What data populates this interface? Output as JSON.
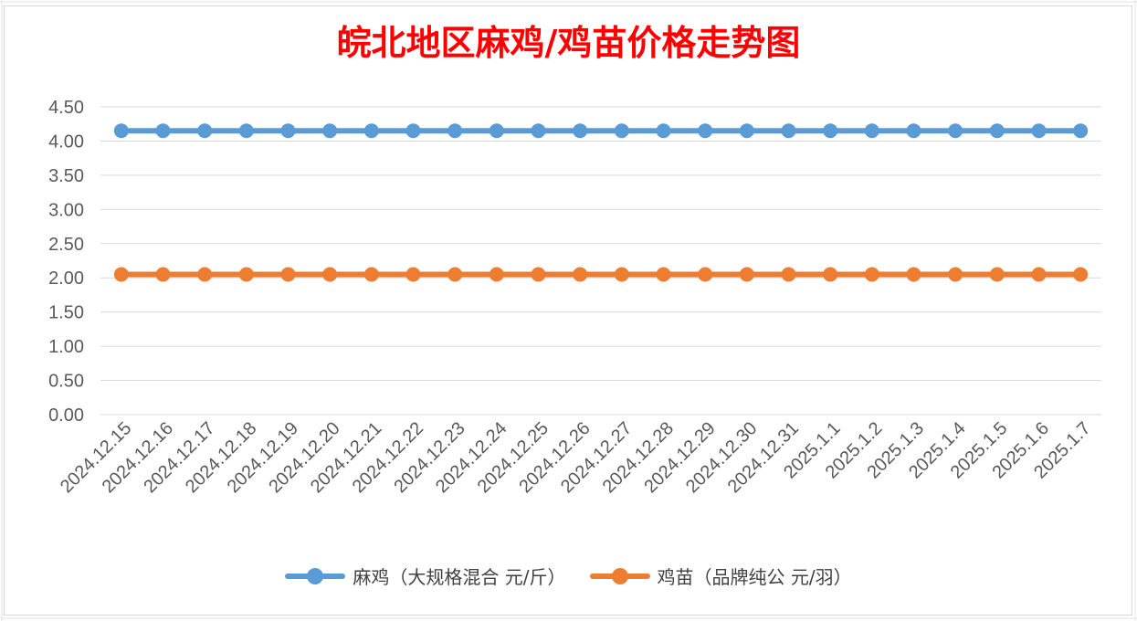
{
  "chart_data": {
    "type": "line",
    "title": "皖北地区麻鸡/鸡苗价格走势图",
    "xlabel": "",
    "ylabel": "",
    "ylim": [
      0,
      4.5
    ],
    "ytick_step": 0.5,
    "yticks": [
      "0.00",
      "0.50",
      "1.00",
      "1.50",
      "2.00",
      "2.50",
      "3.00",
      "3.50",
      "4.00",
      "4.50"
    ],
    "grid": true,
    "legend_position": "bottom",
    "categories": [
      "2024.12.15",
      "2024.12.16",
      "2024.12.17",
      "2024.12.18",
      "2024.12.19",
      "2024.12.20",
      "2024.12.21",
      "2024.12.22",
      "2024.12.23",
      "2024.12.24",
      "2024.12.25",
      "2024.12.26",
      "2024.12.27",
      "2024.12.28",
      "2024.12.29",
      "2024.12.30",
      "2024.12.31",
      "2025.1.1",
      "2025.1.2",
      "2025.1.3",
      "2025.1.4",
      "2025.1.5",
      "2025.1.6",
      "2025.1.7"
    ],
    "series": [
      {
        "name": "麻鸡（大规格混合 元/斤）",
        "color": "#5b9bd5",
        "values": [
          4.15,
          4.15,
          4.15,
          4.15,
          4.15,
          4.15,
          4.15,
          4.15,
          4.15,
          4.15,
          4.15,
          4.15,
          4.15,
          4.15,
          4.15,
          4.15,
          4.15,
          4.15,
          4.15,
          4.15,
          4.15,
          4.15,
          4.15,
          4.15
        ]
      },
      {
        "name": "鸡苗（品牌纯公 元/羽）",
        "color": "#ed7d31",
        "values": [
          2.05,
          2.05,
          2.05,
          2.05,
          2.05,
          2.05,
          2.05,
          2.05,
          2.05,
          2.05,
          2.05,
          2.05,
          2.05,
          2.05,
          2.05,
          2.05,
          2.05,
          2.05,
          2.05,
          2.05,
          2.05,
          2.05,
          2.05,
          2.05
        ]
      }
    ]
  },
  "colors": {
    "title": "#ff0000",
    "gridline": "#d9d9d9",
    "tick_text": "#595959"
  }
}
